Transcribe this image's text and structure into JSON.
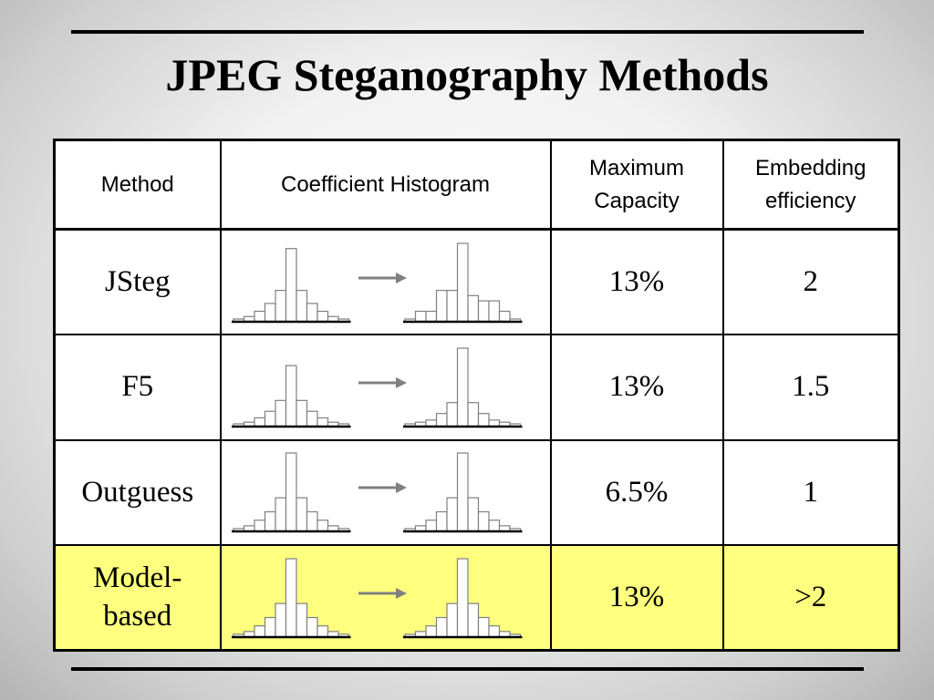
{
  "slide": {
    "title": "JPEG Steganography Methods"
  },
  "table": {
    "headers": {
      "method": "Method",
      "histogram": "Coefficient Histogram",
      "capacity_line1": "Maximum",
      "capacity_line2": "Capacity",
      "efficiency_line1": "Embedding",
      "efficiency_line2": "efficiency"
    },
    "rows": [
      {
        "method": "JSteg",
        "capacity": "13%",
        "efficiency": "2",
        "histogram": {
          "before": [
            1,
            2,
            4,
            7,
            12,
            28,
            12,
            7,
            4,
            2,
            1
          ],
          "after": [
            1,
            4,
            4,
            12,
            12,
            30,
            10,
            8,
            8,
            4,
            1
          ]
        }
      },
      {
        "method": "F5",
        "capacity": "13%",
        "efficiency": "1.5",
        "histogram": {
          "before": [
            1,
            2,
            4,
            7,
            12,
            28,
            12,
            7,
            4,
            2,
            1
          ],
          "after": [
            1,
            2,
            3,
            6,
            11,
            36,
            11,
            6,
            3,
            2,
            1
          ]
        }
      },
      {
        "method": "Outguess",
        "capacity": "6.5%",
        "efficiency": "1",
        "highlight": false,
        "histogram": {
          "before": [
            1,
            2,
            4,
            7,
            12,
            28,
            12,
            7,
            4,
            2,
            1
          ],
          "after": [
            1,
            2,
            4,
            7,
            12,
            28,
            12,
            7,
            4,
            2,
            1
          ]
        }
      },
      {
        "method_line1": "Model-",
        "method_line2": "based",
        "capacity": "13%",
        "efficiency": ">2",
        "highlight": true,
        "histogram": {
          "before": [
            1,
            2,
            4,
            7,
            12,
            28,
            12,
            7,
            4,
            2,
            1
          ],
          "after": [
            1,
            2,
            4,
            7,
            12,
            28,
            12,
            7,
            4,
            2,
            1
          ]
        }
      }
    ]
  },
  "colors": {
    "highlight_row": "#ffff7f",
    "arrow": "#808080",
    "bar_stroke": "#808080"
  }
}
